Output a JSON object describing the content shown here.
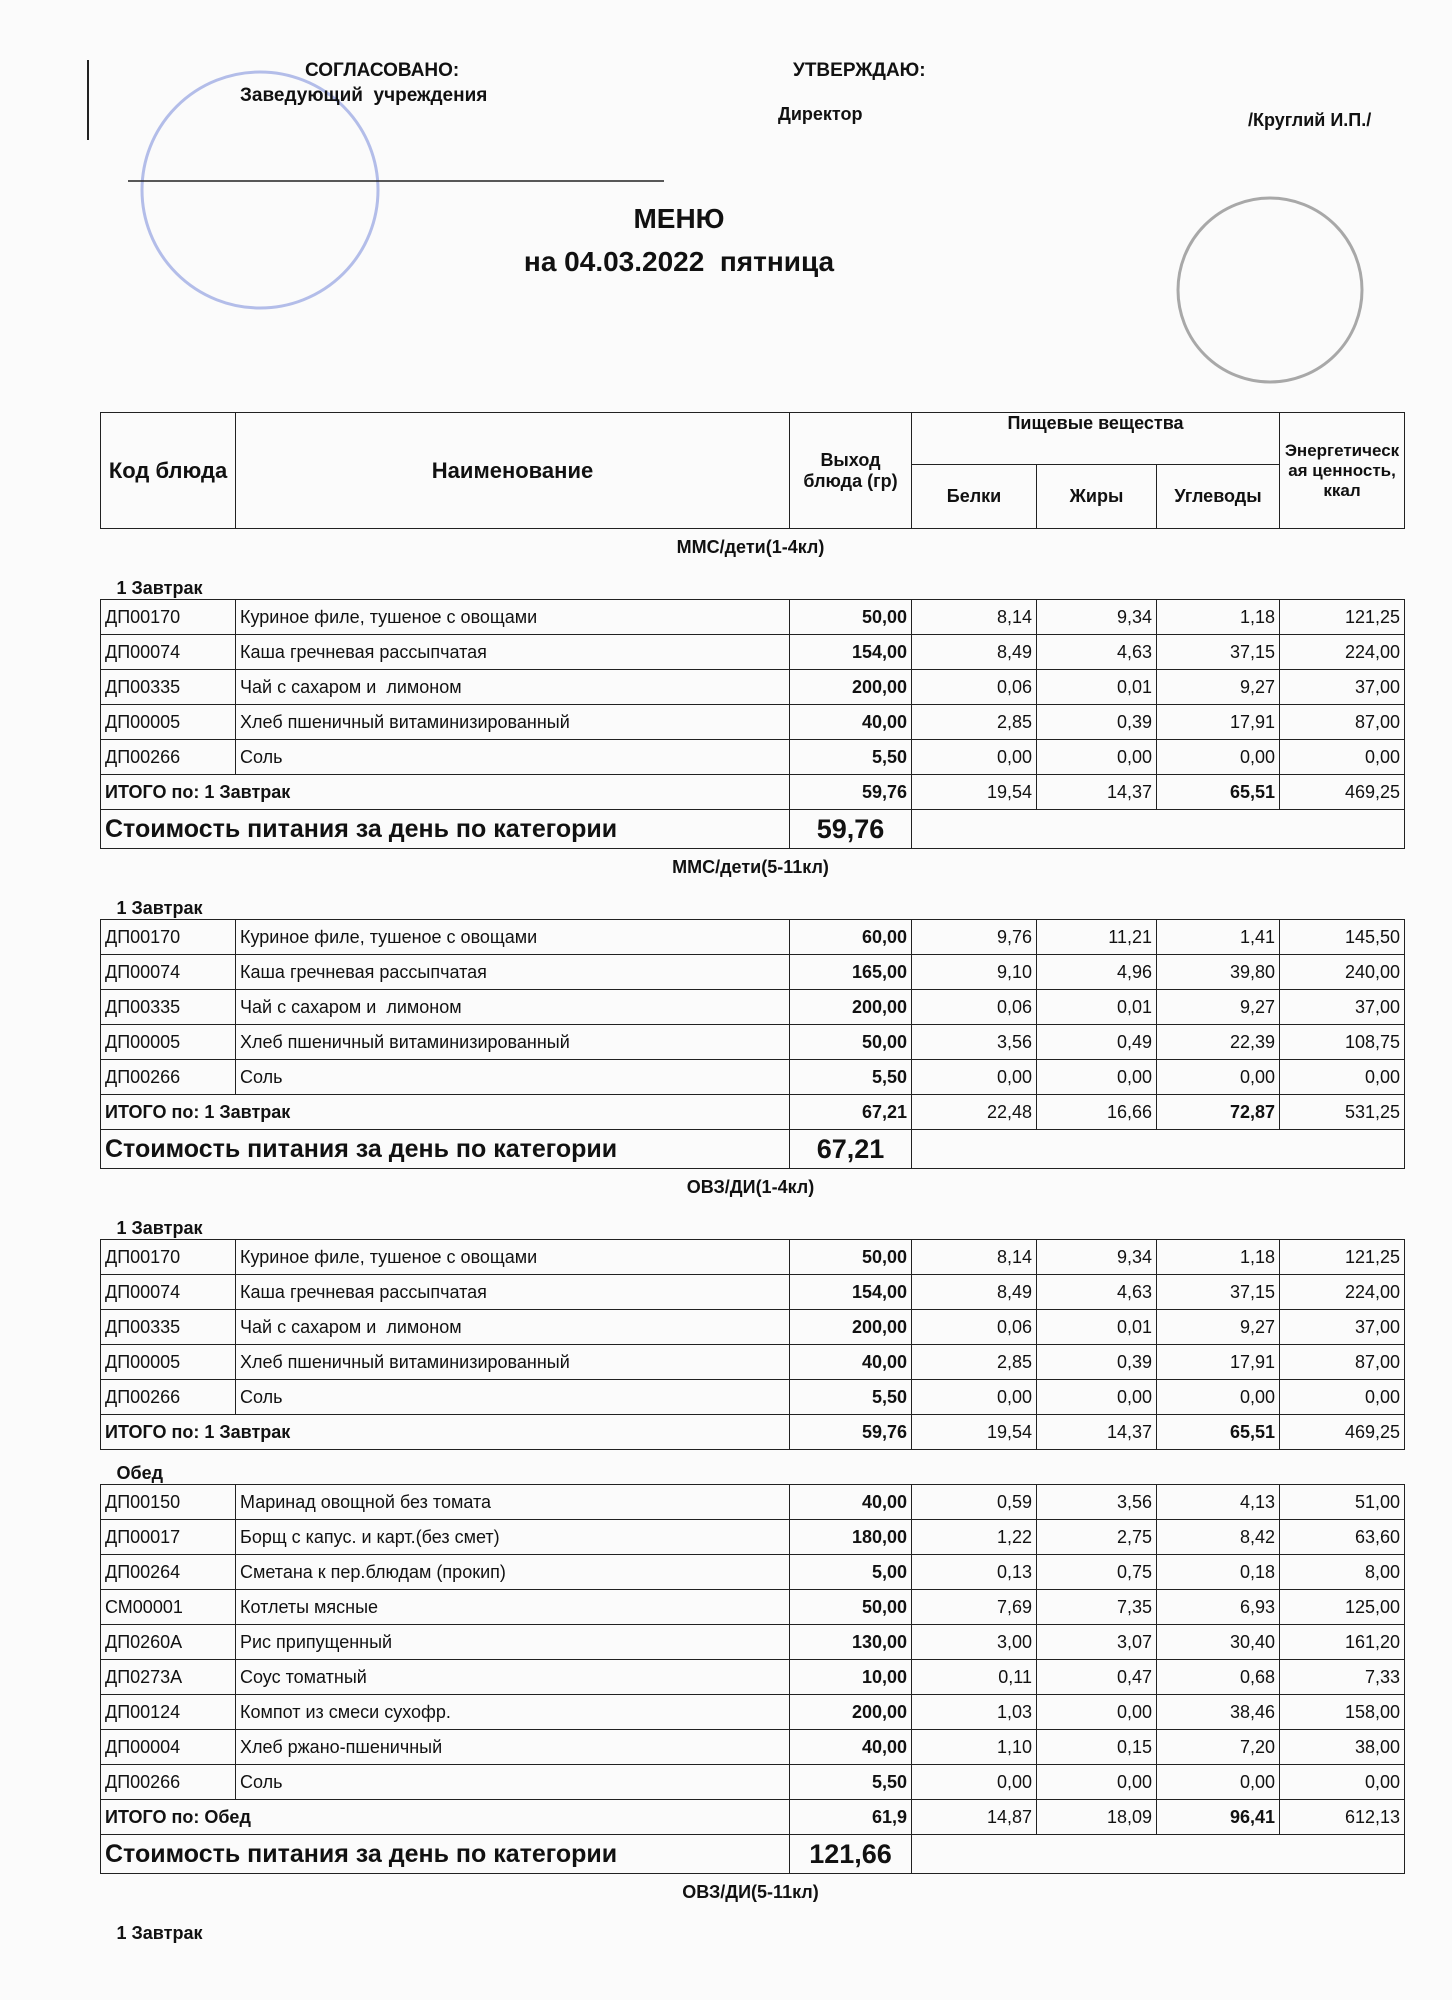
{
  "header": {
    "approved": {
      "label": "СОГЛАСОВАНО:",
      "position": "Заведующий  учреждения"
    },
    "approve": {
      "label": "УТВЕРЖДАЮ:",
      "position": "Директор",
      "name": "/Круглий И.П./"
    },
    "title": "МЕНЮ",
    "subtitle": "на 04.03.2022  пятница"
  },
  "table": {
    "columns": {
      "code": "Код блюда",
      "name": "Наименование",
      "yield": "Выход блюда (гр)",
      "nutrients": "Пищевые вещества",
      "protein": "Белки",
      "fat": "Жиры",
      "carbs": "Углеводы",
      "energy": "Энергетическая ценность, ккал"
    },
    "sections": [
      {
        "title": "ММС/дети(1-4кл)",
        "groups": [
          {
            "title": "1 Завтрак",
            "rows": [
              [
                "ДП00170",
                "Куриное филе, тушеное с овощами",
                "50,00",
                "8,14",
                "9,34",
                "1,18",
                "121,25"
              ],
              [
                "ДП00074",
                "Каша гречневая рассыпчатая",
                "154,00",
                "8,49",
                "4,63",
                "37,15",
                "224,00"
              ],
              [
                "ДП00335",
                "Чай с сахаром и  лимоном",
                "200,00",
                "0,06",
                "0,01",
                "9,27",
                "37,00"
              ],
              [
                "ДП00005",
                "Хлеб пшеничный витаминизированный",
                "40,00",
                "2,85",
                "0,39",
                "17,91",
                "87,00"
              ],
              [
                "ДП00266",
                "Соль",
                "5,50",
                "0,00",
                "0,00",
                "0,00",
                "0,00"
              ]
            ],
            "total": [
              "ИТОГО по: 1 Завтрак",
              "59,76",
              "19,54",
              "14,37",
              "65,51",
              "469,25"
            ]
          }
        ],
        "cost": {
          "label": "Стоимость питания за день по категории",
          "value": "59,76"
        }
      },
      {
        "title": "ММС/дети(5-11кл)",
        "groups": [
          {
            "title": "1 Завтрак",
            "rows": [
              [
                "ДП00170",
                "Куриное филе, тушеное с овощами",
                "60,00",
                "9,76",
                "11,21",
                "1,41",
                "145,50"
              ],
              [
                "ДП00074",
                "Каша гречневая рассыпчатая",
                "165,00",
                "9,10",
                "4,96",
                "39,80",
                "240,00"
              ],
              [
                "ДП00335",
                "Чай с сахаром и  лимоном",
                "200,00",
                "0,06",
                "0,01",
                "9,27",
                "37,00"
              ],
              [
                "ДП00005",
                "Хлеб пшеничный витаминизированный",
                "50,00",
                "3,56",
                "0,49",
                "22,39",
                "108,75"
              ],
              [
                "ДП00266",
                "Соль",
                "5,50",
                "0,00",
                "0,00",
                "0,00",
                "0,00"
              ]
            ],
            "total": [
              "ИТОГО по: 1 Завтрак",
              "67,21",
              "22,48",
              "16,66",
              "72,87",
              "531,25"
            ]
          }
        ],
        "cost": {
          "label": "Стоимость питания за день по категории",
          "value": "67,21"
        }
      },
      {
        "title": "ОВЗ/ДИ(1-4кл)",
        "groups": [
          {
            "title": "1 Завтрак",
            "rows": [
              [
                "ДП00170",
                "Куриное филе, тушеное с овощами",
                "50,00",
                "8,14",
                "9,34",
                "1,18",
                "121,25"
              ],
              [
                "ДП00074",
                "Каша гречневая рассыпчатая",
                "154,00",
                "8,49",
                "4,63",
                "37,15",
                "224,00"
              ],
              [
                "ДП00335",
                "Чай с сахаром и  лимоном",
                "200,00",
                "0,06",
                "0,01",
                "9,27",
                "37,00"
              ],
              [
                "ДП00005",
                "Хлеб пшеничный витаминизированный",
                "40,00",
                "2,85",
                "0,39",
                "17,91",
                "87,00"
              ],
              [
                "ДП00266",
                "Соль",
                "5,50",
                "0,00",
                "0,00",
                "0,00",
                "0,00"
              ]
            ],
            "total": [
              "ИТОГО по: 1 Завтрак",
              "59,76",
              "19,54",
              "14,37",
              "65,51",
              "469,25"
            ]
          },
          {
            "title": "Обед",
            "rows": [
              [
                "ДП00150",
                "Маринад овощной без томата",
                "40,00",
                "0,59",
                "3,56",
                "4,13",
                "51,00"
              ],
              [
                "ДП00017",
                "Борщ с капус. и карт.(без смет)",
                "180,00",
                "1,22",
                "2,75",
                "8,42",
                "63,60"
              ],
              [
                "ДП00264",
                "Сметана к пер.блюдам (прокип)",
                "5,00",
                "0,13",
                "0,75",
                "0,18",
                "8,00"
              ],
              [
                "СМ00001",
                "Котлеты мясные",
                "50,00",
                "7,69",
                "7,35",
                "6,93",
                "125,00"
              ],
              [
                "ДП0260А",
                "Рис припущенный",
                "130,00",
                "3,00",
                "3,07",
                "30,40",
                "161,20"
              ],
              [
                "ДП0273А",
                "Соус томатный",
                "10,00",
                "0,11",
                "0,47",
                "0,68",
                "7,33"
              ],
              [
                "ДП00124",
                "Компот из смеси сухофр.",
                "200,00",
                "1,03",
                "0,00",
                "38,46",
                "158,00"
              ],
              [
                "ДП00004",
                "Хлеб ржано-пшеничный",
                "40,00",
                "1,10",
                "0,15",
                "7,20",
                "38,00"
              ],
              [
                "ДП00266",
                "Соль",
                "5,50",
                "0,00",
                "0,00",
                "0,00",
                "0,00"
              ]
            ],
            "total": [
              "ИТОГО по: Обед",
              "61,9",
              "14,87",
              "18,09",
              "96,41",
              "612,13"
            ]
          }
        ],
        "cost": {
          "label": "Стоимость питания за день по категории",
          "value": "121,66"
        }
      },
      {
        "title": "ОВЗ/ДИ(5-11кл)",
        "groups": [
          {
            "title": "1 Завтрак",
            "rows": []
          }
        ]
      }
    ]
  }
}
